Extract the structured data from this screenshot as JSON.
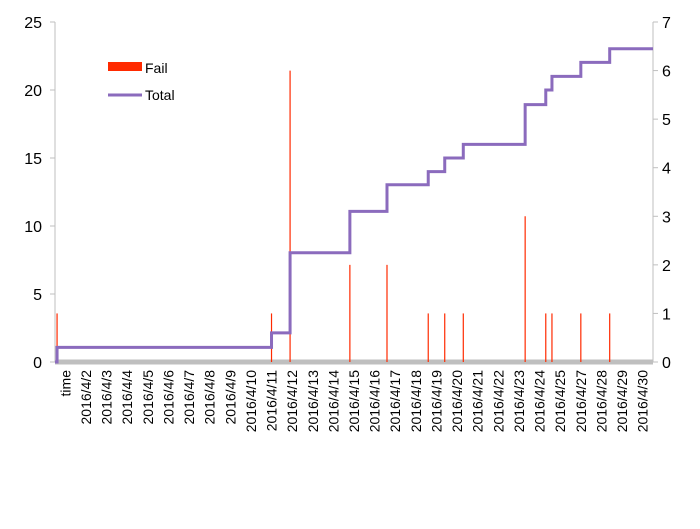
{
  "chart_data": {
    "type": "bar+line",
    "categories": [
      "time",
      "2016/4/2",
      "2016/4/3",
      "2016/4/4",
      "2016/4/5",
      "2016/4/6",
      "2016/4/7",
      "2016/4/8",
      "2016/4/9",
      "2016/4/10",
      "2016/4/11",
      "2016/4/12",
      "2016/4/13",
      "2016/4/14",
      "2016/4/15",
      "2016/4/16",
      "2016/4/17",
      "2016/4/18",
      "2016/4/19",
      "2016/4/20",
      "2016/4/21",
      "2016/4/22",
      "2016/4/23",
      "2016/4/24",
      "2016/4/25",
      "2016/4/27",
      "2016/4/28",
      "2016/4/29",
      "2016/4/30"
    ],
    "x_domain": [
      0,
      29
    ],
    "left_axis": {
      "ticks": [
        "0",
        "5",
        "10",
        "15",
        "20",
        "25"
      ],
      "range": [
        0,
        25
      ]
    },
    "right_axis": {
      "ticks": [
        "0",
        "1",
        "2",
        "3",
        "4",
        "5",
        "6",
        "7"
      ],
      "range": [
        0,
        7
      ]
    },
    "fail_color": "#ff2a00",
    "total_color": "#8b6bbd",
    "axis_color": "#bfbfbf",
    "legend": {
      "position": "top-left",
      "fail_label": "Fail",
      "total_label": "Total"
    },
    "fail_events": [
      {
        "x": 0.1,
        "value": 1
      },
      {
        "x": 10.5,
        "value": 1
      },
      {
        "x": 11.4,
        "value": 6
      },
      {
        "x": 14.3,
        "value": 2
      },
      {
        "x": 16.1,
        "value": 2
      },
      {
        "x": 18.1,
        "value": 1
      },
      {
        "x": 18.9,
        "value": 1
      },
      {
        "x": 19.8,
        "value": 1
      },
      {
        "x": 22.8,
        "value": 3
      },
      {
        "x": 23.8,
        "value": 1
      },
      {
        "x": 24.1,
        "value": 1
      },
      {
        "x": 25.5,
        "value": 1
      },
      {
        "x": 26.9,
        "value": 1
      }
    ],
    "total_steps": [
      {
        "x": 0,
        "value": 0
      },
      {
        "x": 0.1,
        "value": 0.3
      },
      {
        "x": 10.5,
        "value": 0.6
      },
      {
        "x": 11.4,
        "value": 2.25
      },
      {
        "x": 14.3,
        "value": 3.1
      },
      {
        "x": 16.1,
        "value": 3.65
      },
      {
        "x": 18.1,
        "value": 3.92
      },
      {
        "x": 18.9,
        "value": 4.2
      },
      {
        "x": 19.8,
        "value": 4.48
      },
      {
        "x": 22.8,
        "value": 5.3
      },
      {
        "x": 23.8,
        "value": 5.6
      },
      {
        "x": 24.1,
        "value": 5.88
      },
      {
        "x": 25.5,
        "value": 6.17
      },
      {
        "x": 26.9,
        "value": 6.45
      },
      {
        "x": 29,
        "value": 6.45
      }
    ]
  }
}
